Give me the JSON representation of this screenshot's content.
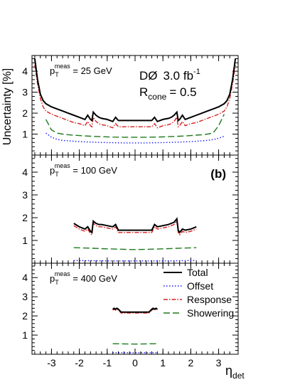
{
  "chart_data": {
    "type": "line",
    "experiment": "DØ",
    "luminosity_text": "3.0 fb",
    "luminosity_sup": "-1",
    "cone_label": "R",
    "cone_sub": "cone",
    "cone_value": "= 0.5",
    "ylabel": "Uncertainty [%]",
    "xlabel": "η",
    "xlabel_sub": "det",
    "xlim": [
      -3.7,
      3.7
    ],
    "ylim": [
      0,
      4.5
    ],
    "xticks": [
      -3,
      -2,
      -1,
      0,
      1,
      2,
      3
    ],
    "yticks": [
      1,
      2,
      3,
      4
    ],
    "legend_position": "bottom-right panel",
    "legend": [
      {
        "key": "total",
        "label": "Total",
        "color": "#000000",
        "dash": ""
      },
      {
        "key": "offset",
        "label": "Offset",
        "color": "#1a1aff",
        "dash": "1.5,2.5"
      },
      {
        "key": "response",
        "label": "Response",
        "color": "#d42020",
        "dash": "6,2,1.5,2"
      },
      {
        "key": "showering",
        "label": "Showering",
        "color": "#1d7a1d",
        "dash": "9,4"
      }
    ],
    "panels": [
      {
        "pt_text": "p",
        "pt_sub": "T",
        "pt_sup": "meas",
        "pt_value": "= 25 GeV",
        "tag": "",
        "series": {
          "total": {
            "x": [
              -3.6,
              -3.5,
              -3.4,
              -3.3,
              -3.2,
              -3.0,
              -2.8,
              -2.6,
              -2.4,
              -2.2,
              -2.0,
              -1.8,
              -1.7,
              -1.6,
              -1.55,
              -1.5,
              -1.4,
              -1.3,
              -1.2,
              -1.0,
              -0.8,
              -0.7,
              -0.6,
              0.6,
              0.7,
              0.8,
              1.0,
              1.2,
              1.3,
              1.4,
              1.5,
              1.55,
              1.6,
              1.7,
              1.8,
              2.0,
              2.2,
              2.4,
              2.6,
              2.8,
              3.0,
              3.2,
              3.3,
              3.4,
              3.5,
              3.6
            ],
            "y": [
              4.6,
              3.6,
              2.9,
              2.6,
              2.45,
              2.3,
              2.2,
              2.1,
              2.0,
              1.9,
              1.8,
              1.7,
              1.9,
              1.7,
              1.65,
              2.05,
              1.9,
              1.8,
              1.75,
              1.7,
              1.6,
              1.8,
              1.65,
              1.65,
              1.8,
              1.6,
              1.7,
              1.75,
              1.8,
              1.9,
              2.05,
              1.65,
              1.7,
              1.9,
              1.7,
              1.8,
              1.9,
              2.0,
              2.1,
              2.2,
              2.3,
              2.45,
              2.6,
              2.9,
              3.6,
              4.6
            ]
          },
          "response": {
            "x": [
              -3.6,
              -3.5,
              -3.4,
              -3.3,
              -3.2,
              -3.0,
              -2.8,
              -2.6,
              -2.4,
              -2.2,
              -2.0,
              -1.8,
              -1.7,
              -1.6,
              -1.55,
              -1.5,
              -1.4,
              -1.3,
              -1.2,
              -1.0,
              -0.8,
              -0.7,
              -0.6,
              0.6,
              0.7,
              0.8,
              1.0,
              1.2,
              1.3,
              1.4,
              1.5,
              1.55,
              1.6,
              1.7,
              1.8,
              2.0,
              2.2,
              2.4,
              2.6,
              2.8,
              3.0,
              3.2,
              3.3,
              3.4,
              3.5,
              3.6
            ],
            "y": [
              4.3,
              3.4,
              2.7,
              2.3,
              2.1,
              1.95,
              1.85,
              1.75,
              1.65,
              1.55,
              1.5,
              1.4,
              1.6,
              1.4,
              1.35,
              1.8,
              1.6,
              1.5,
              1.45,
              1.4,
              1.3,
              1.5,
              1.35,
              1.35,
              1.5,
              1.3,
              1.4,
              1.45,
              1.5,
              1.6,
              1.8,
              1.35,
              1.4,
              1.6,
              1.4,
              1.5,
              1.55,
              1.65,
              1.75,
              1.85,
              1.95,
              2.1,
              2.3,
              2.7,
              3.4,
              4.3
            ]
          },
          "showering": {
            "x": [
              -3.2,
              -3.0,
              -2.8,
              -2.6,
              -2.4,
              -2.2,
              -2.0,
              -1.6,
              -1.2,
              -0.8,
              -0.4,
              0.0,
              0.4,
              0.8,
              1.2,
              1.6,
              2.0,
              2.2,
              2.4,
              2.6,
              2.8,
              3.0,
              3.2
            ],
            "y": [
              1.7,
              1.2,
              1.05,
              1.0,
              0.97,
              0.95,
              0.93,
              0.9,
              0.88,
              0.86,
              0.85,
              0.85,
              0.85,
              0.86,
              0.88,
              0.9,
              0.93,
              0.95,
              0.97,
              1.0,
              1.05,
              1.4,
              1.95
            ]
          },
          "offset": {
            "x": [
              -3.2,
              -3.0,
              -2.8,
              -2.6,
              -2.4,
              -2.2,
              -2.0,
              -1.6,
              -1.2,
              -0.8,
              -0.4,
              0.0,
              0.4,
              0.8,
              1.2,
              1.6,
              2.0,
              2.2,
              2.4,
              2.6,
              2.8,
              3.0,
              3.2
            ],
            "y": [
              1.05,
              0.85,
              0.75,
              0.7,
              0.68,
              0.66,
              0.64,
              0.62,
              0.6,
              0.59,
              0.58,
              0.58,
              0.58,
              0.59,
              0.6,
              0.62,
              0.64,
              0.66,
              0.68,
              0.7,
              0.74,
              0.8,
              0.9
            ]
          }
        }
      },
      {
        "pt_text": "p",
        "pt_sub": "T",
        "pt_sup": "meas",
        "pt_value": "= 100 GeV",
        "tag": "(b)",
        "series": {
          "total": {
            "x": [
              -2.2,
              -2.0,
              -1.8,
              -1.7,
              -1.6,
              -1.55,
              -1.5,
              -1.4,
              -1.3,
              -1.2,
              -1.0,
              -0.8,
              -0.7,
              -0.6,
              0.6,
              0.7,
              0.8,
              1.0,
              1.2,
              1.3,
              1.4,
              1.5,
              1.55,
              1.6,
              1.7,
              1.8,
              2.0,
              2.2
            ],
            "y": [
              1.75,
              1.6,
              1.5,
              1.6,
              1.4,
              1.35,
              1.85,
              1.75,
              1.7,
              1.7,
              1.65,
              1.6,
              1.7,
              1.45,
              1.45,
              1.7,
              1.6,
              1.65,
              1.7,
              1.75,
              1.8,
              1.95,
              1.45,
              1.35,
              1.5,
              1.45,
              1.5,
              1.6
            ]
          },
          "response": {
            "x": [
              -2.2,
              -2.0,
              -1.8,
              -1.7,
              -1.6,
              -1.55,
              -1.5,
              -1.4,
              -1.3,
              -1.2,
              -1.0,
              -0.8,
              -0.7,
              -0.6,
              0.6,
              0.7,
              0.8,
              1.0,
              1.2,
              1.3,
              1.4,
              1.5,
              1.55,
              1.6,
              1.7,
              1.8,
              2.0,
              2.2
            ],
            "y": [
              1.65,
              1.5,
              1.4,
              1.5,
              1.3,
              1.25,
              1.75,
              1.65,
              1.6,
              1.6,
              1.55,
              1.5,
              1.6,
              1.35,
              1.35,
              1.6,
              1.5,
              1.55,
              1.6,
              1.65,
              1.7,
              1.85,
              1.35,
              1.25,
              1.4,
              1.35,
              1.4,
              1.5
            ]
          },
          "showering": {
            "x": [
              -2.2,
              -1.6,
              -1.0,
              -0.4,
              0.0,
              0.4,
              1.0,
              1.6,
              2.2
            ],
            "y": [
              0.68,
              0.66,
              0.63,
              0.61,
              0.6,
              0.61,
              0.63,
              0.66,
              0.68
            ]
          },
          "offset": {
            "x": [
              -2.2,
              -1.6,
              -1.0,
              -0.4,
              0.0,
              0.4,
              1.0,
              1.6,
              2.2
            ],
            "y": [
              0.12,
              0.11,
              0.1,
              0.1,
              0.1,
              0.1,
              0.1,
              0.11,
              0.12
            ]
          }
        }
      },
      {
        "pt_text": "p",
        "pt_sub": "T",
        "pt_sup": "meas",
        "pt_value": "= 400 GeV",
        "tag": "",
        "series": {
          "total": {
            "x": [
              -0.8,
              -0.75,
              -0.7,
              -0.65,
              -0.6,
              -0.5,
              -0.3,
              0.0,
              0.3,
              0.5,
              0.6,
              0.65,
              0.7,
              0.75,
              0.8
            ],
            "y": [
              2.35,
              2.4,
              2.35,
              2.4,
              2.35,
              2.2,
              2.2,
              2.2,
              2.2,
              2.2,
              2.35,
              2.4,
              2.35,
              2.4,
              2.35
            ]
          },
          "response": {
            "x": [
              -0.8,
              -0.75,
              -0.7,
              -0.65,
              -0.6,
              -0.5,
              -0.3,
              0.0,
              0.3,
              0.5,
              0.6,
              0.65,
              0.7,
              0.75,
              0.8
            ],
            "y": [
              2.3,
              2.35,
              2.3,
              2.35,
              2.3,
              2.15,
              2.15,
              2.15,
              2.15,
              2.15,
              2.3,
              2.35,
              2.3,
              2.35,
              2.3
            ]
          },
          "showering": {
            "x": [
              -0.8,
              -0.4,
              0.0,
              0.4,
              0.8
            ],
            "y": [
              0.55,
              0.54,
              0.53,
              0.54,
              0.55
            ]
          },
          "offset": {
            "x": [
              -0.8,
              -0.4,
              0.0,
              0.4,
              0.8
            ],
            "y": [
              0.08,
              0.08,
              0.08,
              0.08,
              0.08
            ]
          }
        }
      }
    ]
  }
}
